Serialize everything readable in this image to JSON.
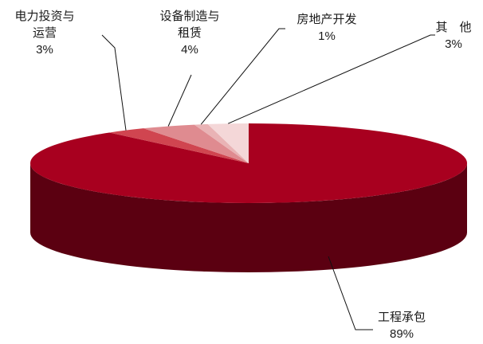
{
  "chart_data": {
    "type": "pie",
    "title": "",
    "labels": [
      "工程承包",
      "电力投资与运营",
      "设备制造与租赁",
      "房地产开发",
      "其　他"
    ],
    "values": [
      89,
      3,
      4,
      1,
      3
    ],
    "value_labels": [
      "89%",
      "3%",
      "4%",
      "1%",
      "3%"
    ],
    "colors": {
      "top": [
        "#a8001f",
        "#d04550",
        "#df8b90",
        "#e9b3b5",
        "#f4d7d8"
      ],
      "side": [
        "#5b0011",
        "#6e1c24",
        "#7a3f43",
        "#8a5b5d",
        "#a07e80"
      ]
    }
  },
  "labels": [
    {
      "line1": "电力投资与",
      "line2": "运营",
      "pct": "3%"
    },
    {
      "line1": "设备制造与",
      "line2": "租赁",
      "pct": "4%"
    },
    {
      "line1": "房地产开发",
      "pct": "1%"
    },
    {
      "line1": "其　他",
      "pct": "3%"
    },
    {
      "line1": "工程承包",
      "pct": "89%"
    }
  ]
}
